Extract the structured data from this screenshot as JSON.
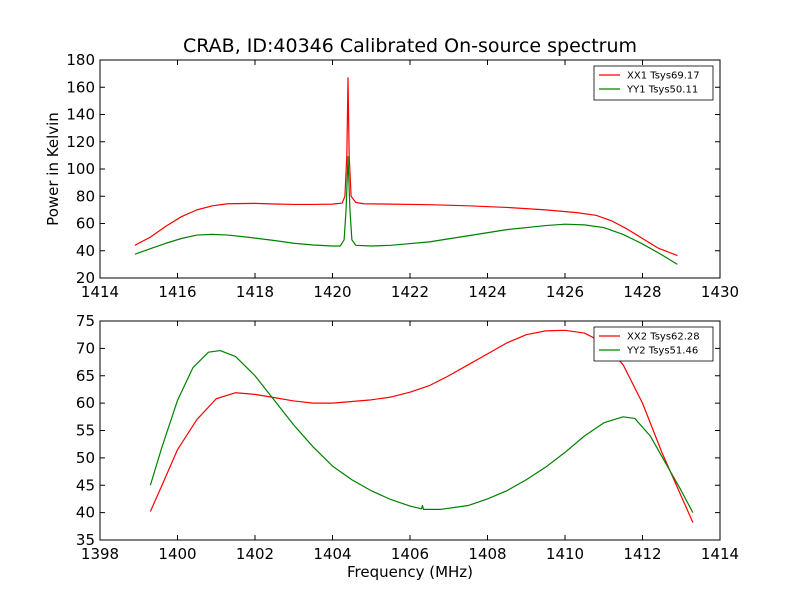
{
  "chart_data": [
    {
      "type": "line",
      "title": "CRAB, ID:40346 Calibrated On-source spectrum",
      "xlabel": "",
      "ylabel": "Power in Kelvin",
      "xlim": [
        1414,
        1430
      ],
      "ylim": [
        20,
        180
      ],
      "xticks": [
        "1414",
        "1416",
        "1418",
        "1420",
        "1422",
        "1424",
        "1426",
        "1428",
        "1430"
      ],
      "yticks": [
        "20",
        "40",
        "60",
        "80",
        "100",
        "120",
        "140",
        "160",
        "180"
      ],
      "legend_position": "top-right",
      "series": [
        {
          "name": "XX1 Tsys69.17",
          "color": "#ff0000",
          "points": [
            [
              1414.9,
              44
            ],
            [
              1415.3,
              50
            ],
            [
              1415.7,
              58
            ],
            [
              1416.1,
              65
            ],
            [
              1416.5,
              70
            ],
            [
              1416.9,
              73
            ],
            [
              1417.3,
              74.5
            ],
            [
              1418,
              74.8
            ],
            [
              1418.5,
              74.3
            ],
            [
              1419,
              74
            ],
            [
              1419.5,
              74
            ],
            [
              1420,
              74.2
            ],
            [
              1420.25,
              75
            ],
            [
              1420.32,
              80
            ],
            [
              1420.37,
              110
            ],
            [
              1420.4,
              167
            ],
            [
              1420.43,
              110
            ],
            [
              1420.48,
              80
            ],
            [
              1420.6,
              75.5
            ],
            [
              1420.8,
              74.5
            ],
            [
              1421.5,
              74.2
            ],
            [
              1422.5,
              73.8
            ],
            [
              1423.5,
              73
            ],
            [
              1424.5,
              71.8
            ],
            [
              1425.5,
              70
            ],
            [
              1426.3,
              68
            ],
            [
              1426.8,
              66
            ],
            [
              1427.2,
              62
            ],
            [
              1427.6,
              56
            ],
            [
              1428,
              49
            ],
            [
              1428.4,
              42
            ],
            [
              1428.9,
              36.5
            ]
          ]
        },
        {
          "name": "YY1 Tsys50.11",
          "color": "#008000",
          "points": [
            [
              1414.9,
              37.5
            ],
            [
              1415.3,
              41.5
            ],
            [
              1415.7,
              45.5
            ],
            [
              1416.1,
              49
            ],
            [
              1416.5,
              51.5
            ],
            [
              1416.9,
              52
            ],
            [
              1417.3,
              51.5
            ],
            [
              1417.8,
              50
            ],
            [
              1418.5,
              47.5
            ],
            [
              1419,
              45.5
            ],
            [
              1419.5,
              44.2
            ],
            [
              1420,
              43.5
            ],
            [
              1420.2,
              43.5
            ],
            [
              1420.3,
              48
            ],
            [
              1420.35,
              70
            ],
            [
              1420.4,
              109
            ],
            [
              1420.45,
              70
            ],
            [
              1420.5,
              48
            ],
            [
              1420.6,
              44
            ],
            [
              1421,
              43.5
            ],
            [
              1421.5,
              44
            ],
            [
              1422.5,
              46.5
            ],
            [
              1423.5,
              51
            ],
            [
              1424.5,
              55.5
            ],
            [
              1425.5,
              58.5
            ],
            [
              1426,
              59.5
            ],
            [
              1426.5,
              59
            ],
            [
              1427,
              57
            ],
            [
              1427.5,
              52
            ],
            [
              1428,
              45
            ],
            [
              1428.5,
              37
            ],
            [
              1428.9,
              30
            ]
          ]
        }
      ]
    },
    {
      "type": "line",
      "title": "",
      "xlabel": "Frequency (MHz)",
      "ylabel": "",
      "xlim": [
        1398,
        1414
      ],
      "ylim": [
        35,
        75
      ],
      "xticks": [
        "1398",
        "1400",
        "1402",
        "1404",
        "1406",
        "1408",
        "1410",
        "1412",
        "1414"
      ],
      "yticks": [
        "35",
        "40",
        "45",
        "50",
        "55",
        "60",
        "65",
        "70",
        "75"
      ],
      "legend_position": "top-right",
      "series": [
        {
          "name": "XX2 Tsys62.28",
          "color": "#ff0000",
          "points": [
            [
              1399.3,
              40.2
            ],
            [
              1399.6,
              45
            ],
            [
              1400,
              51.5
            ],
            [
              1400.5,
              57
            ],
            [
              1401,
              60.8
            ],
            [
              1401.5,
              61.9
            ],
            [
              1402,
              61.6
            ],
            [
              1402.5,
              61
            ],
            [
              1403,
              60.4
            ],
            [
              1403.5,
              60
            ],
            [
              1404,
              60
            ],
            [
              1404.5,
              60.3
            ],
            [
              1405,
              60.6
            ],
            [
              1405.5,
              61.1
            ],
            [
              1406,
              62
            ],
            [
              1406.5,
              63.2
            ],
            [
              1407,
              65
            ],
            [
              1407.5,
              67
            ],
            [
              1408,
              69
            ],
            [
              1408.5,
              71
            ],
            [
              1409,
              72.5
            ],
            [
              1409.5,
              73.2
            ],
            [
              1410,
              73.3
            ],
            [
              1410.5,
              72.8
            ],
            [
              1411,
              71
            ],
            [
              1411.5,
              67
            ],
            [
              1412,
              60
            ],
            [
              1412.5,
              51
            ],
            [
              1413,
              43
            ],
            [
              1413.3,
              38.2
            ]
          ]
        },
        {
          "name": "YY2 Tsys51.46",
          "color": "#008000",
          "points": [
            [
              1399.3,
              45
            ],
            [
              1399.6,
              52
            ],
            [
              1400,
              60.5
            ],
            [
              1400.4,
              66.5
            ],
            [
              1400.8,
              69.3
            ],
            [
              1401.1,
              69.6
            ],
            [
              1401.5,
              68.5
            ],
            [
              1402,
              65
            ],
            [
              1402.5,
              60.5
            ],
            [
              1403,
              56
            ],
            [
              1403.5,
              52
            ],
            [
              1404,
              48.5
            ],
            [
              1404.5,
              46
            ],
            [
              1405,
              44
            ],
            [
              1405.5,
              42.4
            ],
            [
              1406,
              41.2
            ],
            [
              1406.3,
              40.7
            ],
            [
              1406.32,
              41.3
            ],
            [
              1406.35,
              40.6
            ],
            [
              1406.8,
              40.6
            ],
            [
              1407.5,
              41.3
            ],
            [
              1408,
              42.5
            ],
            [
              1408.5,
              44
            ],
            [
              1409,
              46
            ],
            [
              1409.5,
              48.3
            ],
            [
              1410,
              51
            ],
            [
              1410.5,
              54
            ],
            [
              1411,
              56.4
            ],
            [
              1411.5,
              57.5
            ],
            [
              1411.8,
              57.2
            ],
            [
              1412.2,
              54
            ],
            [
              1412.6,
              49
            ],
            [
              1413,
              44
            ],
            [
              1413.3,
              40
            ]
          ]
        }
      ]
    }
  ]
}
